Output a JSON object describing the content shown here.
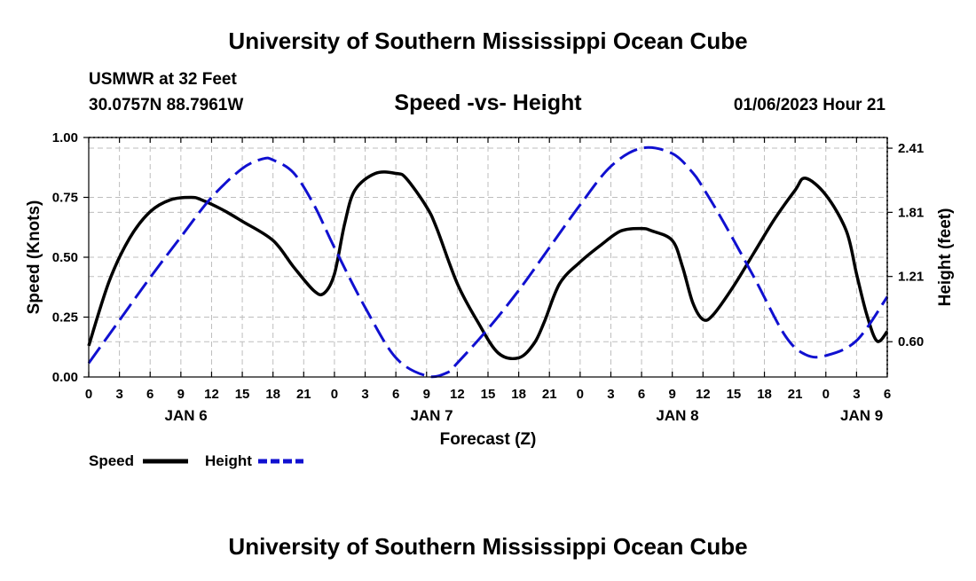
{
  "header": {
    "title": "University of Southern Mississippi Ocean Cube",
    "station": "USMWR at 32 Feet",
    "coords": "30.0757N  88.7961W",
    "subtitle": "Speed -vs- Height",
    "date": "01/06/2023 Hour 21"
  },
  "footer": {
    "title": "University of Southern Mississippi Ocean Cube"
  },
  "legend": {
    "speed_label": "Speed",
    "height_label": "Height"
  },
  "colors": {
    "speed": "#000000",
    "height": "#1010d0",
    "grid": "#bdbdbd"
  },
  "chart_data": {
    "type": "line",
    "title": "Speed -vs- Height",
    "xlabel": "Forecast (Z)",
    "ylabel": "Speed (Knots)",
    "y2label": "Height (feet)",
    "x_unit": "forecast hour",
    "xlim": [
      0,
      78
    ],
    "ylim": [
      0,
      1.0
    ],
    "y2lim": [
      0.27,
      2.51
    ],
    "x_ticks": [
      0,
      3,
      6,
      9,
      12,
      15,
      18,
      21,
      24,
      27,
      30,
      33,
      36,
      39,
      42,
      45,
      48,
      51,
      54,
      57,
      60,
      63,
      66,
      69,
      72,
      75,
      78
    ],
    "x_tick_labels": [
      "0",
      "3",
      "6",
      "9",
      "12",
      "15",
      "18",
      "21",
      "0",
      "3",
      "6",
      "9",
      "12",
      "15",
      "18",
      "21",
      "0",
      "3",
      "6",
      "9",
      "12",
      "15",
      "18",
      "21",
      "0",
      "3",
      "6"
    ],
    "day_labels": [
      {
        "label": "JAN 6",
        "x": 9.5
      },
      {
        "label": "JAN 7",
        "x": 33.5
      },
      {
        "label": "JAN 8",
        "x": 57.5
      },
      {
        "label": "JAN 9",
        "x": 75.5
      }
    ],
    "y_ticks": [
      0.0,
      0.25,
      0.5,
      0.75,
      1.0
    ],
    "y_tick_labels": [
      "0.00",
      "0.25",
      "0.50",
      "0.75",
      "1.00"
    ],
    "y2_ticks": [
      0.6,
      1.21,
      1.81,
      2.41
    ],
    "y2_tick_labels": [
      "0.60",
      "1.21",
      "1.81",
      "2.41"
    ],
    "grid": true,
    "legend": "bottom-left",
    "series": [
      {
        "name": "Speed",
        "axis": "left",
        "style": "solid",
        "x": [
          0,
          2,
          4,
          6,
          8,
          10,
          11,
          13,
          15,
          18,
          20,
          22,
          23,
          24,
          25,
          26,
          28,
          30,
          31,
          33,
          34,
          36,
          38,
          40,
          42,
          43.5,
          44.5,
          46,
          48,
          50,
          52,
          54,
          55,
          57,
          58,
          59,
          60,
          61,
          63,
          65,
          67,
          69,
          70,
          72,
          74,
          75,
          76,
          77,
          78
        ],
        "values": [
          0.13,
          0.4,
          0.58,
          0.69,
          0.74,
          0.75,
          0.74,
          0.7,
          0.65,
          0.57,
          0.46,
          0.36,
          0.35,
          0.43,
          0.64,
          0.78,
          0.85,
          0.85,
          0.83,
          0.71,
          0.62,
          0.39,
          0.23,
          0.1,
          0.08,
          0.14,
          0.23,
          0.39,
          0.48,
          0.55,
          0.61,
          0.62,
          0.61,
          0.57,
          0.46,
          0.31,
          0.24,
          0.26,
          0.38,
          0.52,
          0.66,
          0.78,
          0.83,
          0.76,
          0.61,
          0.43,
          0.26,
          0.15,
          0.19
        ]
      },
      {
        "name": "Height",
        "axis": "right",
        "style": "dashed",
        "x": [
          0,
          3,
          6,
          9,
          12,
          15,
          17,
          18,
          20,
          22,
          24,
          27,
          30,
          33,
          35,
          36,
          39,
          42,
          45,
          48,
          51,
          54,
          57,
          59,
          60,
          62,
          65,
          68,
          70,
          72,
          75,
          78
        ],
        "values": [
          0.4,
          0.8,
          1.2,
          1.58,
          1.95,
          2.22,
          2.31,
          2.3,
          2.18,
          1.88,
          1.48,
          0.92,
          0.45,
          0.28,
          0.31,
          0.4,
          0.72,
          1.08,
          1.48,
          1.88,
          2.24,
          2.41,
          2.36,
          2.18,
          2.04,
          1.72,
          1.2,
          0.66,
          0.48,
          0.47,
          0.61,
          1.02
        ]
      }
    ]
  }
}
